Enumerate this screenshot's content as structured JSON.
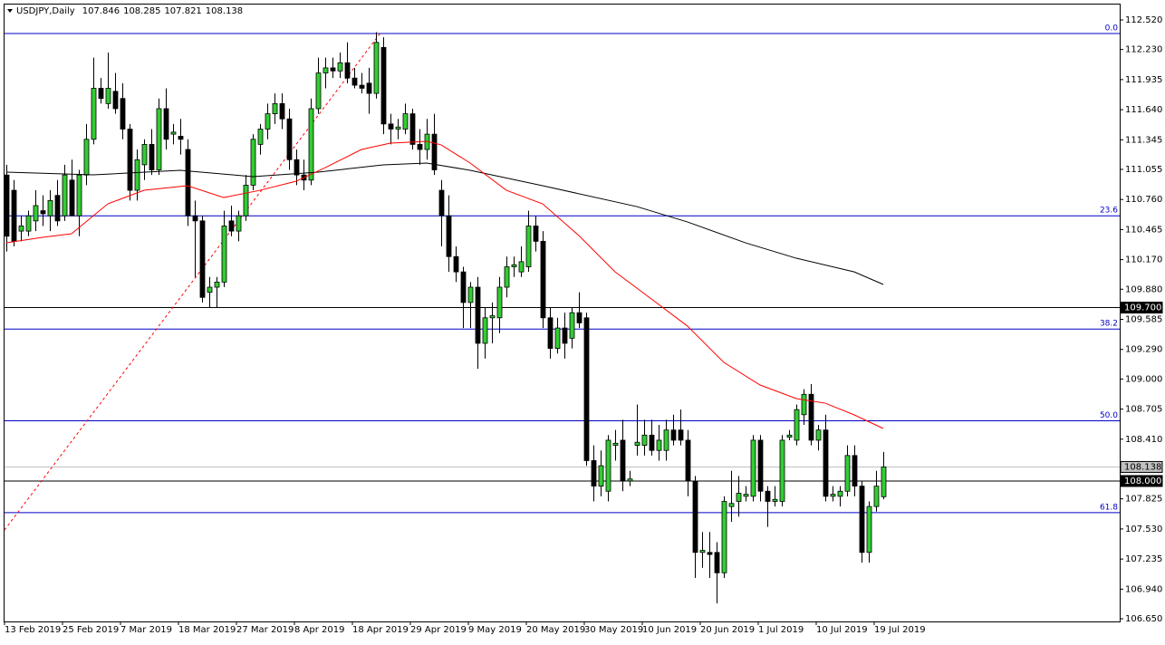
{
  "chart_data": {
    "type": "candlestick",
    "symbol": "USDJPY,Daily",
    "header_ohlc": [
      107.846,
      108.285,
      107.821,
      108.138
    ],
    "up_color": "#32cd32",
    "down_color": "#000000",
    "fib_color": "#0000c8",
    "trend_color": "#ff0000",
    "ylim": [
      106.65,
      112.52
    ],
    "yticks": [
      {
        "value": 112.52,
        "label": "112.520"
      },
      {
        "value": 112.23,
        "label": "112.230"
      },
      111.935,
      {
        "value": 111.64,
        "label": "111.640"
      },
      111.345,
      111.055,
      {
        "value": 110.76,
        "label": "110.760"
      },
      110.465,
      {
        "value": 110.17,
        "label": "110.170"
      },
      {
        "value": 109.88,
        "label": "109.880"
      },
      109.585,
      {
        "value": 109.29,
        "label": "109.290"
      },
      {
        "value": 109.0,
        "label": "109.000"
      },
      108.705,
      {
        "value": 108.41,
        "label": "108.410"
      },
      107.825,
      {
        "value": 107.53,
        "label": "107.530"
      },
      107.235,
      {
        "value": 106.94,
        "label": "106.940"
      },
      {
        "value": 106.65,
        "label": "106.650"
      }
    ],
    "categories": [
      "13 Feb 2019",
      null,
      null,
      null,
      null,
      null,
      null,
      null,
      "25 Feb 2019",
      null,
      null,
      null,
      null,
      null,
      null,
      null,
      "7 Mar 2019",
      null,
      null,
      null,
      null,
      null,
      null,
      null,
      "18 Mar 2019",
      null,
      null,
      null,
      null,
      null,
      null,
      null,
      "27 Mar 2019",
      null,
      null,
      null,
      null,
      null,
      null,
      null,
      "8 Apr 2019",
      null,
      null,
      null,
      null,
      null,
      null,
      null,
      "18 Apr 2019",
      null,
      null,
      null,
      null,
      null,
      null,
      null,
      "29 Apr 2019",
      null,
      null,
      null,
      null,
      null,
      null,
      null,
      "9 May 2019",
      null,
      null,
      null,
      null,
      null,
      null,
      null,
      "20 May 2019",
      null,
      null,
      null,
      null,
      null,
      null,
      null,
      "30 May 2019",
      null,
      null,
      null,
      null,
      null,
      null,
      null,
      "10 Jun 2019",
      null,
      null,
      null,
      null,
      null,
      null,
      null,
      "20 Jun 2019",
      null,
      null,
      null,
      null,
      null,
      null,
      null,
      "1 Jul 2019",
      null,
      null,
      null,
      null,
      null,
      null,
      null,
      "10 Jul 2019",
      null,
      null,
      null,
      null,
      null,
      null,
      null,
      "19 Jul 2019",
      null
    ],
    "candles": [
      [
        111.0,
        111.1,
        110.25,
        110.4
      ],
      [
        110.85,
        110.95,
        110.3,
        110.35
      ],
      [
        110.45,
        110.6,
        110.35,
        110.5
      ],
      [
        110.45,
        110.65,
        110.4,
        110.6
      ],
      [
        110.55,
        110.85,
        110.45,
        110.7
      ],
      [
        110.65,
        110.8,
        110.5,
        110.62
      ],
      [
        110.6,
        110.85,
        110.45,
        110.75
      ],
      [
        110.8,
        110.95,
        110.5,
        110.55
      ],
      [
        110.6,
        111.1,
        110.55,
        111.0
      ],
      [
        110.95,
        111.15,
        110.6,
        110.6
      ],
      [
        110.6,
        111.05,
        110.4,
        111.0
      ],
      [
        111.0,
        111.5,
        110.9,
        111.35
      ],
      [
        111.35,
        112.15,
        111.3,
        111.85
      ],
      [
        111.85,
        111.95,
        111.7,
        111.75
      ],
      [
        111.7,
        112.2,
        111.65,
        111.85
      ],
      [
        111.82,
        112.0,
        111.6,
        111.65
      ],
      [
        111.75,
        111.9,
        111.35,
        111.45
      ],
      [
        111.45,
        111.5,
        110.75,
        110.85
      ],
      [
        110.85,
        111.25,
        110.75,
        111.15
      ],
      [
        111.1,
        111.35,
        110.95,
        111.3
      ],
      [
        111.3,
        111.45,
        111.0,
        111.05
      ],
      [
        111.05,
        111.75,
        111.0,
        111.65
      ],
      [
        111.65,
        111.85,
        111.25,
        111.35
      ],
      [
        111.4,
        111.5,
        111.3,
        111.42
      ],
      [
        111.38,
        111.55,
        111.2,
        111.35
      ],
      [
        111.25,
        111.35,
        110.5,
        110.6
      ],
      [
        110.6,
        110.75,
        110.0,
        110.55
      ],
      [
        110.55,
        110.6,
        109.75,
        109.8
      ],
      [
        109.85,
        110.0,
        109.7,
        109.9
      ],
      [
        109.9,
        110.0,
        109.7,
        109.95
      ],
      [
        109.95,
        110.65,
        109.9,
        110.5
      ],
      [
        110.55,
        110.7,
        110.4,
        110.45
      ],
      [
        110.45,
        110.65,
        110.35,
        110.6
      ],
      [
        110.6,
        111.0,
        110.55,
        110.9
      ],
      [
        110.9,
        111.4,
        110.85,
        111.35
      ],
      [
        111.3,
        111.5,
        111.2,
        111.45
      ],
      [
        111.45,
        111.7,
        111.35,
        111.6
      ],
      [
        111.6,
        111.8,
        111.5,
        111.7
      ],
      [
        111.7,
        111.8,
        111.45,
        111.55
      ],
      [
        111.55,
        111.65,
        111.05,
        111.15
      ],
      [
        111.15,
        111.25,
        110.9,
        111.0
      ],
      [
        111.0,
        111.15,
        110.85,
        110.95
      ],
      [
        110.95,
        111.75,
        110.9,
        111.65
      ],
      [
        111.65,
        112.15,
        111.6,
        112.0
      ],
      [
        112.0,
        112.15,
        111.85,
        112.05
      ],
      [
        112.05,
        112.15,
        111.95,
        112.02
      ],
      [
        112.02,
        112.2,
        111.95,
        112.1
      ],
      [
        112.1,
        112.3,
        111.9,
        111.95
      ],
      [
        111.95,
        112.05,
        111.85,
        111.88
      ],
      [
        111.88,
        112.0,
        111.8,
        111.85
      ],
      [
        111.9,
        112.05,
        111.6,
        111.8
      ],
      [
        111.8,
        112.4,
        111.75,
        112.3
      ],
      [
        112.25,
        112.35,
        111.4,
        111.5
      ],
      [
        111.5,
        111.6,
        111.3,
        111.45
      ],
      [
        111.45,
        111.55,
        111.35,
        111.47
      ],
      [
        111.45,
        111.7,
        111.4,
        111.6
      ],
      [
        111.6,
        111.65,
        111.25,
        111.3
      ],
      [
        111.3,
        111.45,
        111.1,
        111.25
      ],
      [
        111.25,
        111.55,
        111.15,
        111.4
      ],
      [
        111.4,
        111.6,
        111.0,
        111.05
      ],
      [
        110.85,
        110.95,
        110.3,
        110.6
      ],
      [
        110.6,
        110.8,
        110.05,
        110.2
      ],
      [
        110.2,
        110.3,
        109.95,
        110.05
      ],
      [
        110.05,
        110.1,
        109.5,
        109.75
      ],
      [
        109.75,
        109.95,
        109.5,
        109.9
      ],
      [
        109.9,
        110.0,
        109.1,
        109.35
      ],
      [
        109.35,
        109.7,
        109.2,
        109.6
      ],
      [
        109.6,
        109.75,
        109.35,
        109.62
      ],
      [
        109.6,
        110.0,
        109.45,
        109.9
      ],
      [
        109.9,
        110.2,
        109.8,
        110.1
      ],
      [
        110.1,
        110.2,
        110.0,
        110.12
      ],
      [
        110.05,
        110.3,
        110.0,
        110.15
      ],
      [
        110.1,
        110.65,
        110.05,
        110.5
      ],
      [
        110.5,
        110.6,
        110.25,
        110.35
      ],
      [
        110.35,
        110.45,
        109.5,
        109.6
      ],
      [
        109.6,
        109.7,
        109.2,
        109.3
      ],
      [
        109.3,
        109.6,
        109.25,
        109.5
      ],
      [
        109.5,
        109.65,
        109.2,
        109.35
      ],
      [
        109.4,
        109.7,
        109.3,
        109.65
      ],
      [
        109.65,
        109.85,
        109.5,
        109.55
      ],
      [
        109.6,
        109.65,
        108.15,
        108.2
      ],
      [
        108.2,
        108.35,
        107.8,
        107.95
      ],
      [
        107.95,
        108.3,
        107.85,
        108.15
      ],
      [
        107.9,
        108.45,
        107.8,
        108.4
      ],
      [
        108.35,
        108.5,
        108.2,
        108.37
      ],
      [
        108.4,
        108.6,
        107.9,
        108.0
      ],
      [
        108.0,
        108.1,
        107.95,
        108.02
      ],
      [
        108.35,
        108.75,
        108.25,
        108.38
      ],
      [
        108.35,
        108.6,
        108.25,
        108.45
      ],
      [
        108.45,
        108.6,
        108.25,
        108.3
      ],
      [
        108.3,
        108.55,
        108.2,
        108.4
      ],
      [
        108.3,
        108.6,
        108.2,
        108.5
      ],
      [
        108.5,
        108.65,
        108.35,
        108.4
      ],
      [
        108.5,
        108.7,
        108.35,
        108.4
      ],
      [
        108.4,
        108.5,
        107.85,
        108.0
      ],
      [
        108.0,
        108.05,
        107.05,
        107.3
      ],
      [
        107.3,
        107.5,
        107.15,
        107.32
      ],
      [
        107.3,
        107.5,
        107.05,
        107.28
      ],
      [
        107.3,
        107.4,
        106.8,
        107.1
      ],
      [
        107.1,
        107.85,
        107.05,
        107.8
      ],
      [
        107.75,
        108.1,
        107.6,
        107.78
      ],
      [
        107.8,
        108.05,
        107.65,
        107.88
      ],
      [
        107.85,
        107.95,
        107.8,
        107.87
      ],
      [
        107.85,
        108.45,
        107.8,
        108.4
      ],
      [
        108.4,
        108.45,
        107.8,
        107.9
      ],
      [
        107.9,
        107.95,
        107.55,
        107.8
      ],
      [
        107.8,
        107.95,
        107.75,
        107.82
      ],
      [
        107.8,
        108.45,
        107.75,
        108.4
      ],
      [
        108.43,
        108.5,
        108.4,
        108.45
      ],
      [
        108.4,
        108.75,
        108.35,
        108.7
      ],
      [
        108.65,
        108.9,
        108.55,
        108.85
      ],
      [
        108.85,
        108.95,
        108.35,
        108.4
      ],
      [
        108.4,
        108.55,
        108.3,
        108.5
      ],
      [
        108.5,
        108.65,
        107.8,
        107.85
      ],
      [
        107.85,
        107.95,
        107.8,
        107.87
      ],
      [
        107.85,
        107.95,
        107.75,
        107.9
      ],
      [
        107.9,
        108.35,
        107.85,
        108.25
      ],
      [
        108.25,
        108.35,
        107.85,
        107.95
      ],
      [
        107.95,
        108.0,
        107.2,
        107.3
      ],
      [
        107.3,
        107.8,
        107.2,
        107.75
      ],
      [
        107.75,
        108.1,
        107.7,
        107.95
      ],
      [
        107.846,
        108.285,
        107.821,
        108.138
      ]
    ],
    "lines": [
      {
        "color": "#000000",
        "x": [
          0,
          12,
          24,
          34,
          43,
          52,
          58,
          64,
          74,
          87,
          94,
          102,
          109,
          117,
          121
        ],
        "values": [
          111.028,
          111.001,
          111.046,
          110.984,
          111.028,
          111.099,
          111.117,
          111.046,
          110.895,
          110.69,
          110.539,
          110.335,
          110.184,
          110.05,
          109.927
        ]
      },
      {
        "color": "#ff0000",
        "x": [
          0,
          5,
          9,
          14,
          19,
          25,
          30,
          35,
          40,
          44,
          49,
          53,
          58,
          60,
          64,
          69,
          74,
          79,
          84,
          89,
          94,
          99,
          104,
          109,
          113,
          117,
          121
        ],
        "values": [
          110.335,
          110.389,
          110.424,
          110.717,
          110.85,
          110.895,
          110.779,
          110.85,
          110.939,
          111.072,
          111.25,
          111.312,
          111.33,
          111.295,
          111.117,
          110.85,
          110.717,
          110.406,
          110.05,
          109.785,
          109.518,
          109.163,
          108.941,
          108.808,
          108.763,
          108.648,
          108.515
        ]
      }
    ],
    "trendline": {
      "x": [
        -0.25,
        51.6
      ],
      "values": [
        107.52,
        112.39
      ]
    },
    "fib_levels": [
      {
        "label": "0.0",
        "price": 112.387
      },
      {
        "label": "23.6",
        "price": 110.6
      },
      {
        "label": "38.2",
        "price": 109.49
      },
      {
        "label": "50.0",
        "price": 108.59
      },
      {
        "label": "61.8",
        "price": 107.69
      }
    ],
    "price_lines": [
      {
        "value": 109.7,
        "label": "109.700"
      },
      {
        "value": 108.0,
        "label": "108.000"
      }
    ],
    "current_price": {
      "value": 108.138,
      "label": "108.138"
    }
  }
}
